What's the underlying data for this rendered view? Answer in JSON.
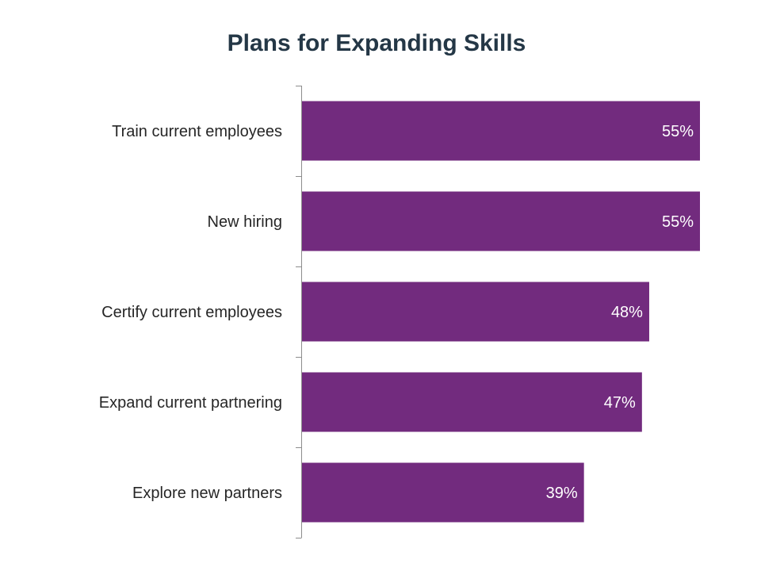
{
  "chart_data": {
    "type": "bar",
    "orientation": "horizontal",
    "title": "Plans for Expanding Skills",
    "categories": [
      "Train current employees",
      "New hiring",
      "Certify current employees",
      "Expand current partnering",
      "Explore new partners"
    ],
    "values": [
      55,
      55,
      48,
      47,
      39
    ],
    "value_labels": [
      "55%",
      "55%",
      "48%",
      "47%",
      "39%"
    ],
    "unit": "%",
    "xlim": [
      0,
      55
    ],
    "grid": false,
    "legend": "none",
    "bar_color": "#722B7E",
    "axis_color": "#8C8C8C"
  }
}
